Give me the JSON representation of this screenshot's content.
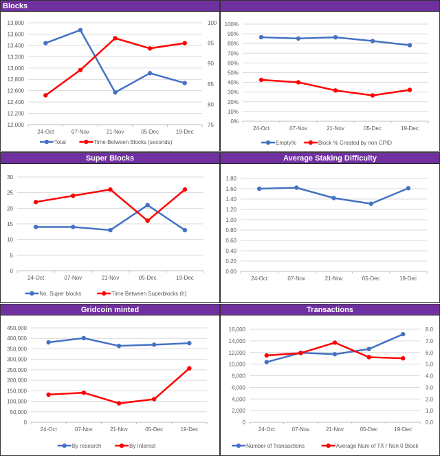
{
  "colors": {
    "header": "#7030a0",
    "blue": "#4472c4",
    "red": "#ff0000",
    "grid": "#d9d9d9",
    "text": "#595959"
  },
  "chart_data": [
    {
      "id": "blocks",
      "type": "line",
      "title": "Blocks",
      "title_align": "left",
      "categories": [
        "24-Oct",
        "07-Nov",
        "21-Nov",
        "05-Dec",
        "19-Dec"
      ],
      "y_left": {
        "min": 12000,
        "max": 13800,
        "step": 200,
        "format": "thousands"
      },
      "y_right": {
        "min": 75,
        "max": 100,
        "step": 5,
        "format": "int"
      },
      "series": [
        {
          "name": "Total",
          "axis": "left",
          "color": "#4472c4",
          "values": [
            13440,
            13670,
            12570,
            12910,
            12735
          ]
        },
        {
          "name": "Time Between Blocks (seconds)",
          "axis": "right",
          "color": "#ff0000",
          "values": [
            82.2,
            88.4,
            96.2,
            93.7,
            95.0
          ]
        }
      ],
      "grid": true,
      "legend": "bottom"
    },
    {
      "id": "empty",
      "type": "line",
      "title": "",
      "title_align": "center",
      "categories": [
        "24-Oct",
        "07-Nov",
        "21-Nov",
        "05-Dec",
        "19-Dec"
      ],
      "y_left": {
        "min": 0,
        "max": 100,
        "step": 10,
        "format": "percent"
      },
      "series": [
        {
          "name": "Empty%",
          "axis": "left",
          "color": "#4472c4",
          "values": [
            86.5,
            85.2,
            86.4,
            82.6,
            78.3
          ]
        },
        {
          "name": "Block % Created by non CPID",
          "axis": "left",
          "color": "#ff0000",
          "values": [
            42.6,
            40.1,
            31.7,
            26.6,
            32.3
          ]
        }
      ],
      "grid": true,
      "legend": "bottom"
    },
    {
      "id": "superblocks",
      "type": "line",
      "title": "Super Blocks",
      "title_align": "center",
      "categories": [
        "24-Oct",
        "07-Nov",
        "21-Nov",
        "05-Dec",
        "19-Dec"
      ],
      "y_left": {
        "min": 0,
        "max": 30,
        "step": 5,
        "format": "int"
      },
      "series": [
        {
          "name": "No. Super blocks",
          "axis": "left",
          "color": "#4472c4",
          "values": [
            14,
            14,
            13,
            21,
            13
          ]
        },
        {
          "name": "Time Between Superblocks (h)",
          "axis": "left",
          "color": "#ff0000",
          "values": [
            22,
            24,
            26,
            16,
            26
          ]
        }
      ],
      "grid": true,
      "legend": "bottom"
    },
    {
      "id": "staking",
      "type": "line",
      "title": "Average Staking Difficulty",
      "title_align": "center",
      "categories": [
        "24-Oct",
        "07-Nov",
        "21-Nov",
        "05-Dec",
        "19-Dec"
      ],
      "y_left": {
        "min": 0,
        "max": 1.8,
        "step": 0.2,
        "format": "dec2"
      },
      "series": [
        {
          "name": "Average Staking Difficulty",
          "axis": "left",
          "color": "#4472c4",
          "values": [
            1.6,
            1.62,
            1.42,
            1.31,
            1.61
          ]
        }
      ],
      "grid": true,
      "legend": "none"
    },
    {
      "id": "minted",
      "type": "line",
      "title": "Gridcoin minted",
      "title_align": "center",
      "categories": [
        "24-Oct",
        "07-Nov",
        "21-Nov",
        "05-Dec",
        "19-Dec"
      ],
      "y_left": {
        "min": 0,
        "max": 450000,
        "step": 50000,
        "format": "thousands"
      },
      "series": [
        {
          "name": "By research",
          "axis": "left",
          "color": "#4472c4",
          "values": [
            381000,
            401000,
            364000,
            370000,
            377000
          ]
        },
        {
          "name": "By Interest",
          "axis": "left",
          "color": "#ff0000",
          "values": [
            132000,
            141000,
            90000,
            110000,
            257000
          ]
        }
      ],
      "grid": true,
      "legend": "bottom"
    },
    {
      "id": "transactions",
      "type": "line",
      "title": "Transactions",
      "title_align": "center",
      "categories": [
        "24-Oct",
        "07-Nov",
        "21-Nov",
        "05-Dec",
        "19-Dec"
      ],
      "y_left": {
        "min": 0,
        "max": 16000,
        "step": 2000,
        "format": "thousands"
      },
      "y_right": {
        "min": 0,
        "max": 8,
        "step": 1,
        "format": "dec1"
      },
      "series": [
        {
          "name": "Number of Transactions",
          "axis": "left",
          "color": "#4472c4",
          "values": [
            10350,
            11950,
            11700,
            12600,
            15150
          ]
        },
        {
          "name": "Average Num of TX / Non 0 Block",
          "axis": "right",
          "color": "#ff0000",
          "values": [
            5.75,
            5.95,
            6.85,
            5.6,
            5.5
          ]
        }
      ],
      "grid": true,
      "legend": "bottom"
    }
  ]
}
